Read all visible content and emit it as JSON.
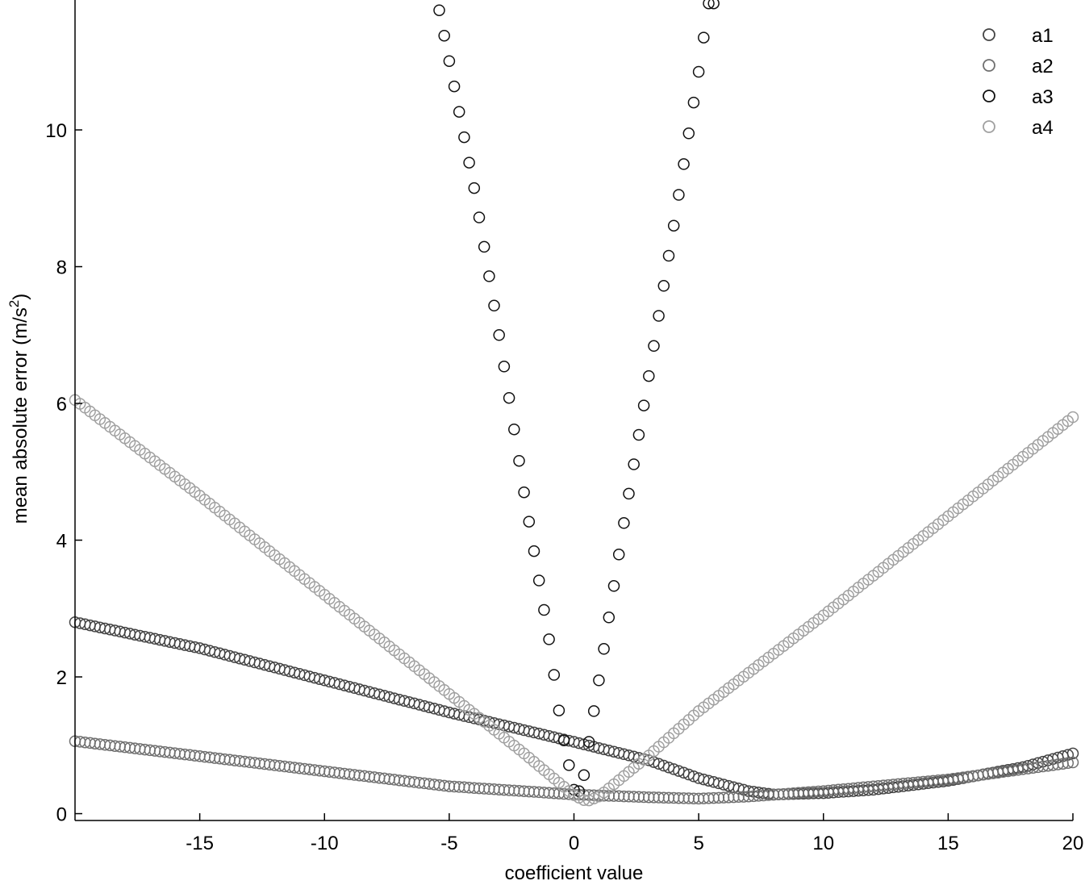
{
  "chart_data": {
    "type": "scatter",
    "title": "",
    "xlabel": "coefficient value",
    "ylabel": "mean absolute error  (m/s",
    "ylabel_sup": "2",
    "ylabel_close": ")",
    "xlim": [
      -20,
      20
    ],
    "ylim": [
      -0.1,
      11.9
    ],
    "xticks": [
      -15,
      -10,
      -5,
      0,
      5,
      10,
      15,
      20
    ],
    "yticks": [
      0,
      2,
      4,
      6,
      8,
      10
    ],
    "grid": false,
    "legend": {
      "placement": "top-right"
    },
    "series": [
      {
        "name": "a1",
        "color": "#444444",
        "x_range": [
          -20,
          20
        ],
        "step": 0.2,
        "profile": [
          [
            -20,
            2.8
          ],
          [
            -15,
            2.42
          ],
          [
            -10,
            1.95
          ],
          [
            -5,
            1.48
          ],
          [
            0,
            1.05
          ],
          [
            3,
            0.78
          ],
          [
            5,
            0.52
          ],
          [
            7,
            0.33
          ],
          [
            8,
            0.28
          ],
          [
            10,
            0.3
          ],
          [
            12,
            0.35
          ],
          [
            15,
            0.48
          ],
          [
            18,
            0.68
          ],
          [
            20,
            0.88
          ]
        ]
      },
      {
        "name": "a2",
        "color": "#707070",
        "x_range": [
          -20,
          20
        ],
        "step": 0.2,
        "profile": [
          [
            -20,
            1.06
          ],
          [
            -15,
            0.84
          ],
          [
            -10,
            0.62
          ],
          [
            -5,
            0.4
          ],
          [
            0,
            0.28
          ],
          [
            3,
            0.24
          ],
          [
            5,
            0.22
          ],
          [
            7,
            0.25
          ],
          [
            10,
            0.33
          ],
          [
            15,
            0.5
          ],
          [
            20,
            0.75
          ]
        ]
      },
      {
        "name": "a3",
        "color": "#111111",
        "x_range": [
          -5.4,
          5.6
        ],
        "step": 0.2,
        "profile": [
          [
            -5.4,
            11.75
          ],
          [
            -4,
            9.15
          ],
          [
            -3,
            7.0
          ],
          [
            -2,
            4.7
          ],
          [
            -1,
            2.55
          ],
          [
            -0.5,
            1.25
          ],
          [
            0,
            0.35
          ],
          [
            0.3,
            0.32
          ],
          [
            0.6,
            1.05
          ],
          [
            1,
            1.95
          ],
          [
            2,
            4.25
          ],
          [
            3,
            6.4
          ],
          [
            4,
            8.6
          ],
          [
            5,
            10.85
          ],
          [
            5.4,
            11.85
          ]
        ]
      },
      {
        "name": "a4",
        "color": "#a0a0a0",
        "x_range": [
          -20,
          20
        ],
        "step": 0.2,
        "profile": [
          [
            -20,
            6.05
          ],
          [
            -15,
            4.65
          ],
          [
            -10,
            3.2
          ],
          [
            -5,
            1.75
          ],
          [
            -2,
            0.88
          ],
          [
            0,
            0.27
          ],
          [
            0.5,
            0.18
          ],
          [
            1,
            0.25
          ],
          [
            3,
            0.85
          ],
          [
            5,
            1.5
          ],
          [
            10,
            2.9
          ],
          [
            15,
            4.35
          ],
          [
            20,
            5.8
          ]
        ]
      }
    ]
  }
}
